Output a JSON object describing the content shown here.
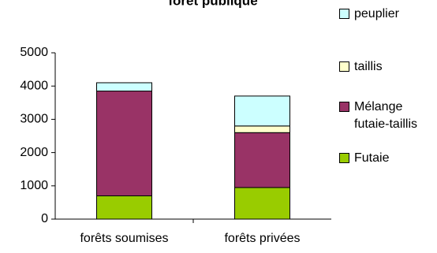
{
  "chart_data": {
    "type": "stacked_bar",
    "title": "forêt publique",
    "categories": [
      "forêts soumises",
      "forêts privées"
    ],
    "series": [
      {
        "name": "Futaie",
        "color": "#99cc00",
        "values": [
          700,
          950
        ]
      },
      {
        "name": "Mélange futaie-taillis",
        "color": "#993366",
        "values": [
          3150,
          1650
        ]
      },
      {
        "name": "taillis",
        "color": "#ffffcc",
        "values": [
          0,
          200
        ]
      },
      {
        "name": "peuplier",
        "color": "#ccffff",
        "values": [
          250,
          900
        ]
      }
    ],
    "ylim": [
      0,
      5000
    ],
    "yticks": [
      0,
      1000,
      2000,
      3000,
      4000,
      5000
    ],
    "grid": false
  }
}
